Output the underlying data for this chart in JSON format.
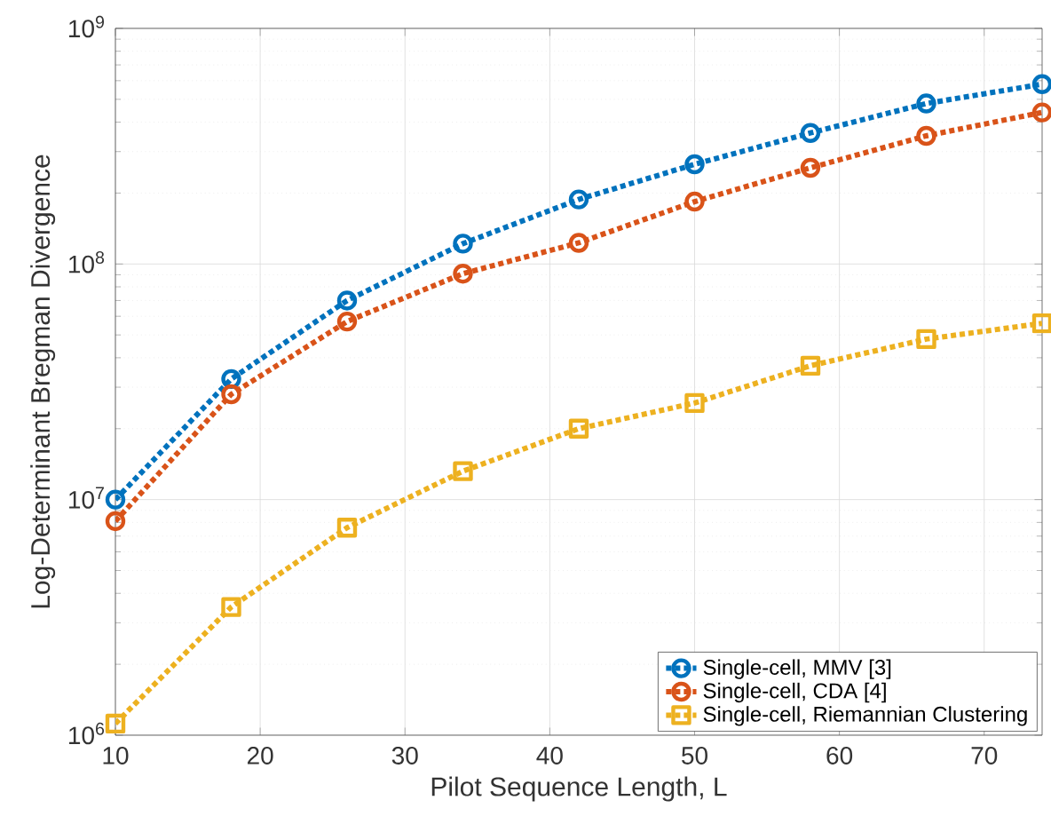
{
  "chart_data": {
    "type": "line",
    "xlabel": "Pilot Sequence Length, L",
    "ylabel": "Log-Determinant Bregman Divergence",
    "x": [
      10,
      18,
      26,
      34,
      42,
      50,
      58,
      66,
      74
    ],
    "series": [
      {
        "name": "Single-cell, MMV [3]",
        "color": "#0072bd",
        "marker": "circle",
        "values": [
          10000000,
          32500000,
          70000000,
          122000000,
          188000000,
          265000000,
          360000000,
          480000000,
          580000000
        ]
      },
      {
        "name": "Single-cell, CDA [4]",
        "color": "#d95319",
        "marker": "circle",
        "values": [
          8100000,
          28000000,
          57000000,
          91000000,
          123000000,
          184000000,
          256000000,
          350000000,
          440000000
        ]
      },
      {
        "name": "Single-cell, Riemannian Clustering",
        "color": "#edb120",
        "marker": "square",
        "values": [
          1120000,
          3500000,
          7600000,
          13200000,
          20000000,
          25700000,
          37000000,
          48000000,
          56000000
        ]
      }
    ],
    "log": "y",
    "xlim": [
      10,
      74
    ],
    "ylim": [
      1000000,
      1000000000
    ],
    "xticks": [
      10,
      20,
      30,
      40,
      50,
      60,
      70
    ],
    "yticks": [
      {
        "value": 1000000,
        "label": "10$^{6}$"
      },
      {
        "value": 10000000,
        "label": "10$^{7}$"
      },
      {
        "value": 100000000,
        "label": "10$^{8}$"
      },
      {
        "value": 1000000000,
        "label": "10$^{9}$"
      }
    ],
    "grid": true,
    "legend": "bottom right",
    "line_style": "dotted"
  }
}
